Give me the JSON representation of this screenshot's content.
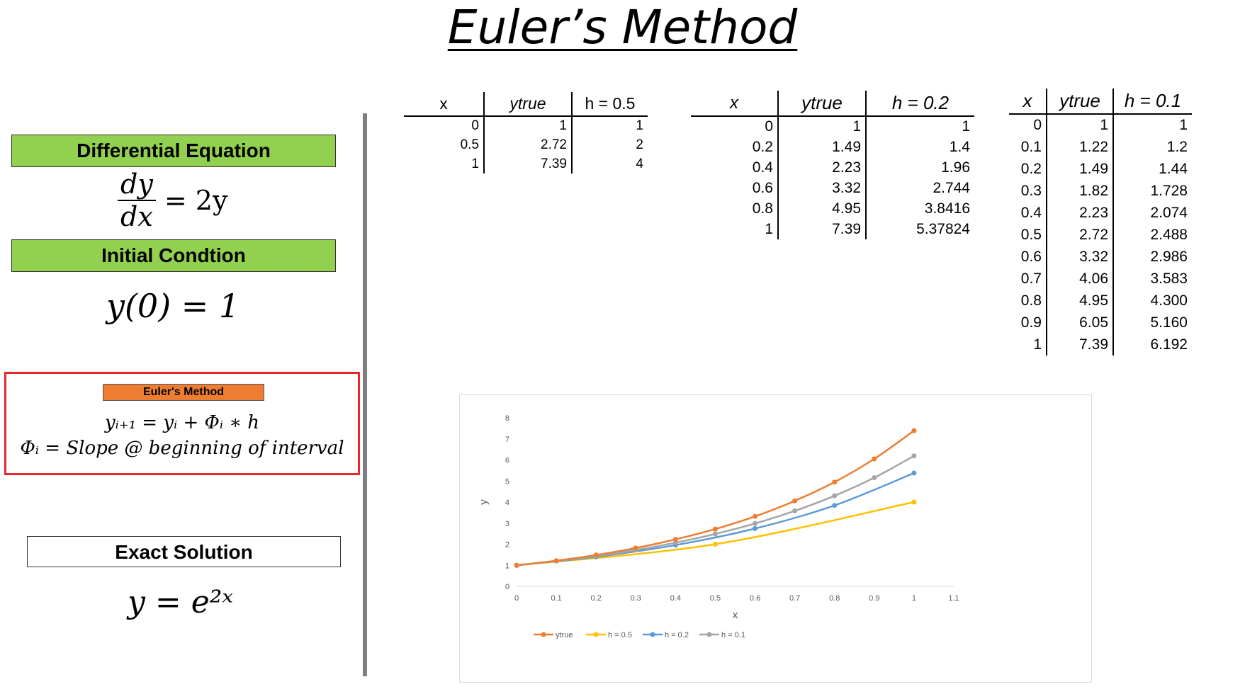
{
  "title": "Euler’s Method",
  "left": {
    "diff_eq_label": "Differential Equation",
    "diff_eq": {
      "num": "dy",
      "den": "dx",
      "rhs": "= 2y"
    },
    "initial_label": "Initial Condtion",
    "initial_eq": "y(0) = 1",
    "euler_label": "Euler's Method",
    "euler_formula1": "yᵢ₊₁ = yᵢ + Φᵢ ∗ h",
    "euler_formula2": "Φᵢ = Slope @ beginning of interval",
    "exact_label": "Exact Solution",
    "exact_eq": "y = e²ˣ"
  },
  "tables": [
    {
      "headers": [
        "x",
        "ytrue",
        "h = 0.5"
      ],
      "rows": [
        [
          "0",
          "1",
          "1"
        ],
        [
          "0.5",
          "2.72",
          "2"
        ],
        [
          "1",
          "7.39",
          "4"
        ]
      ]
    },
    {
      "headers": [
        "x",
        "ytrue",
        "h = 0.2"
      ],
      "rows": [
        [
          "0",
          "1",
          "1"
        ],
        [
          "0.2",
          "1.49",
          "1.4"
        ],
        [
          "0.4",
          "2.23",
          "1.96"
        ],
        [
          "0.6",
          "3.32",
          "2.744"
        ],
        [
          "0.8",
          "4.95",
          "3.8416"
        ],
        [
          "1",
          "7.39",
          "5.37824"
        ]
      ]
    },
    {
      "headers": [
        "x",
        "ytrue",
        "h = 0.1"
      ],
      "rows": [
        [
          "0",
          "1",
          "1"
        ],
        [
          "0.1",
          "1.22",
          "1.2"
        ],
        [
          "0.2",
          "1.49",
          "1.44"
        ],
        [
          "0.3",
          "1.82",
          "1.728"
        ],
        [
          "0.4",
          "2.23",
          "2.074"
        ],
        [
          "0.5",
          "2.72",
          "2.488"
        ],
        [
          "0.6",
          "3.32",
          "2.986"
        ],
        [
          "0.7",
          "4.06",
          "3.583"
        ],
        [
          "0.8",
          "4.95",
          "4.300"
        ],
        [
          "0.9",
          "6.05",
          "5.160"
        ],
        [
          "1",
          "7.39",
          "6.192"
        ]
      ]
    }
  ],
  "chart_data": {
    "type": "line",
    "xlabel": "x",
    "ylabel": "y",
    "xlim": [
      0,
      1.1
    ],
    "ylim": [
      0,
      8
    ],
    "xticks": [
      "0",
      "0.1",
      "0.2",
      "0.3",
      "0.4",
      "0.5",
      "0.6",
      "0.7",
      "0.8",
      "0.9",
      "1",
      "1.1"
    ],
    "yticks": [
      "0",
      "1",
      "2",
      "3",
      "4",
      "5",
      "6",
      "7",
      "8"
    ],
    "grid": false,
    "legend_position": "bottom",
    "series": [
      {
        "name": "ytrue",
        "color": "#ed7d31",
        "x": [
          0,
          0.1,
          0.2,
          0.3,
          0.4,
          0.5,
          0.6,
          0.7,
          0.8,
          0.9,
          1
        ],
        "y": [
          1,
          1.22,
          1.49,
          1.82,
          2.23,
          2.72,
          3.32,
          4.06,
          4.95,
          6.05,
          7.39
        ]
      },
      {
        "name": "h = 0.5",
        "color": "#ffc000",
        "x": [
          0,
          0.5,
          1
        ],
        "y": [
          1,
          2,
          4
        ]
      },
      {
        "name": "h = 0.2",
        "color": "#5b9bd5",
        "x": [
          0,
          0.2,
          0.4,
          0.6,
          0.8,
          1
        ],
        "y": [
          1,
          1.4,
          1.96,
          2.744,
          3.8416,
          5.37824
        ]
      },
      {
        "name": "h = 0.1",
        "color": "#a5a5a5",
        "x": [
          0,
          0.1,
          0.2,
          0.3,
          0.4,
          0.5,
          0.6,
          0.7,
          0.8,
          0.9,
          1
        ],
        "y": [
          1,
          1.2,
          1.44,
          1.728,
          2.074,
          2.488,
          2.986,
          3.583,
          4.3,
          5.16,
          6.192
        ]
      }
    ]
  }
}
